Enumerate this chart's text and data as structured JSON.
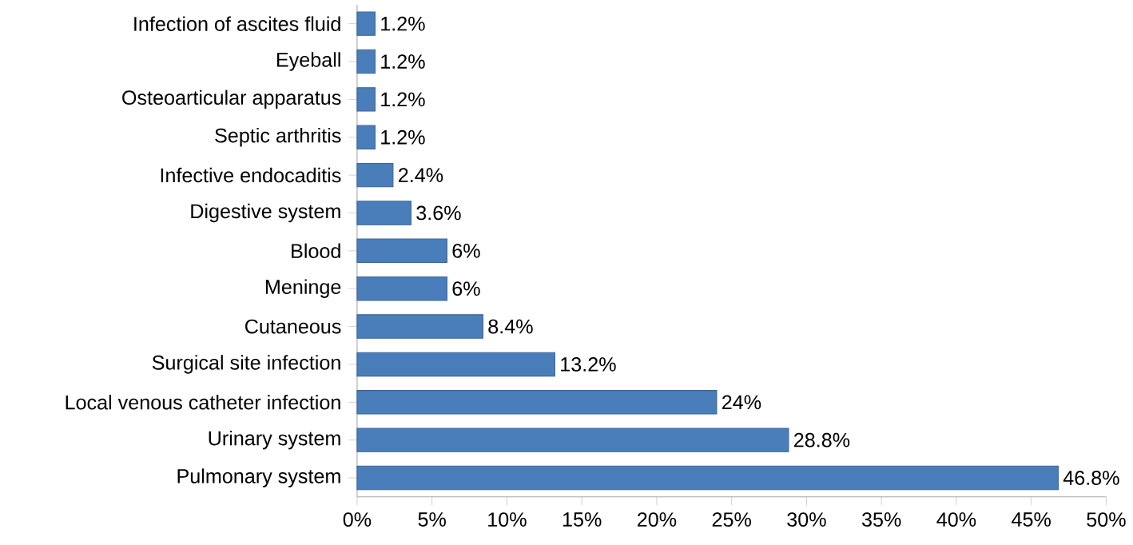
{
  "chart_data": {
    "type": "bar",
    "orientation": "horizontal",
    "categories": [
      "Infection of ascites fluid",
      "Eyeball",
      "Osteoarticular apparatus",
      "Septic arthritis",
      "Infective endocaditis",
      "Digestive system",
      "Blood",
      "Meninge",
      "Cutaneous",
      "Surgical site infection",
      "Local venous catheter infection",
      "Urinary system",
      "Pulmonary system"
    ],
    "values": [
      1.2,
      1.2,
      1.2,
      1.2,
      2.4,
      3.6,
      6,
      6,
      8.4,
      13.2,
      24,
      28.8,
      46.8
    ],
    "value_labels": [
      "1.2%",
      "1.2%",
      "1.2%",
      "1.2%",
      "2.4%",
      "3.6%",
      "6%",
      "6%",
      "8.4%",
      "13.2%",
      "24%",
      "28.8%",
      "46.8%"
    ],
    "color": "#4a7ebb",
    "xlim": [
      0,
      50
    ],
    "xticks": [
      {
        "value": 0,
        "label": "0%"
      },
      {
        "value": 5,
        "label": "5%"
      },
      {
        "value": 10,
        "label": "10%"
      },
      {
        "value": 15,
        "label": "15%"
      },
      {
        "value": 20,
        "label": "20%"
      },
      {
        "value": 25,
        "label": "25%"
      },
      {
        "value": 30,
        "label": "30%"
      },
      {
        "value": 35,
        "label": "35%"
      },
      {
        "value": 40,
        "label": "40%"
      },
      {
        "value": 45,
        "label": "45%"
      },
      {
        "value": 50,
        "label": "50%"
      }
    ],
    "grid": false
  }
}
